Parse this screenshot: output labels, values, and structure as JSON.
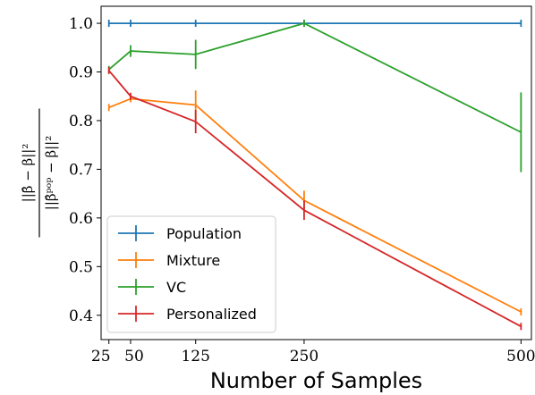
{
  "chart_data": {
    "type": "line",
    "x": [
      25,
      50,
      125,
      250,
      500
    ],
    "xticks": [
      "25",
      "50",
      "125",
      "250",
      "500"
    ],
    "xlim": [
      16,
      512
    ],
    "yticks": [
      "0.4",
      "0.5",
      "0.6",
      "0.7",
      "0.8",
      "0.9",
      "1.0"
    ],
    "ylim": [
      0.35,
      1.035
    ],
    "xlabel": "Number of Samples",
    "ylabel_num": "||β̂ − β||²",
    "ylabel_den": "||β̂ᵖᵒᵖ − β||²",
    "grid": false,
    "legend_position": "lower-left",
    "series": [
      {
        "name": "Population",
        "color": "#1f77b4",
        "x": [
          25,
          50,
          125,
          250,
          500
        ],
        "values": [
          1.0,
          1.0,
          1.0,
          1.0,
          1.0
        ],
        "errors": [
          0,
          0,
          0,
          0,
          0
        ]
      },
      {
        "name": "Mixture",
        "color": "#ff7f0e",
        "x": [
          25,
          50,
          125,
          250,
          500
        ],
        "values": [
          0.827,
          0.845,
          0.832,
          0.636,
          0.407
        ],
        "errors": [
          0,
          0,
          0.03,
          0.02,
          0.004
        ]
      },
      {
        "name": "VC",
        "color": "#2ca02c",
        "x": [
          25,
          50,
          125,
          250,
          500
        ],
        "values": [
          0.905,
          0.943,
          0.936,
          1.0,
          0.776
        ],
        "errors": [
          0.005,
          0.012,
          0.03,
          0.003,
          0.082
        ]
      },
      {
        "name": "Personalized",
        "color": "#d62728",
        "x": [
          25,
          50,
          125,
          250,
          500
        ],
        "values": [
          0.903,
          0.85,
          0.798,
          0.616,
          0.377
        ],
        "errors": [
          0.006,
          0,
          0.024,
          0.02,
          0.004
        ]
      }
    ]
  }
}
